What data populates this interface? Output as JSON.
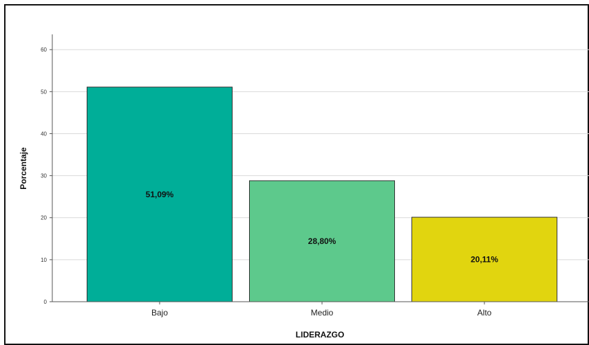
{
  "chart_data": {
    "type": "bar",
    "categories": [
      "Bajo",
      "Medio",
      "Alto"
    ],
    "values": [
      51.09,
      28.8,
      20.11
    ],
    "data_labels": [
      "51,09%",
      "28,80%",
      "20,11%"
    ],
    "colors": [
      "#00AE98",
      "#5DC98C",
      "#E1D50F"
    ],
    "xlabel": "LIDERAZGO",
    "ylabel": "Porcentaje",
    "ylim": [
      0,
      62
    ],
    "yticks": [
      0,
      10,
      20,
      30,
      40,
      50,
      60
    ],
    "grid": true,
    "legend": "none"
  }
}
